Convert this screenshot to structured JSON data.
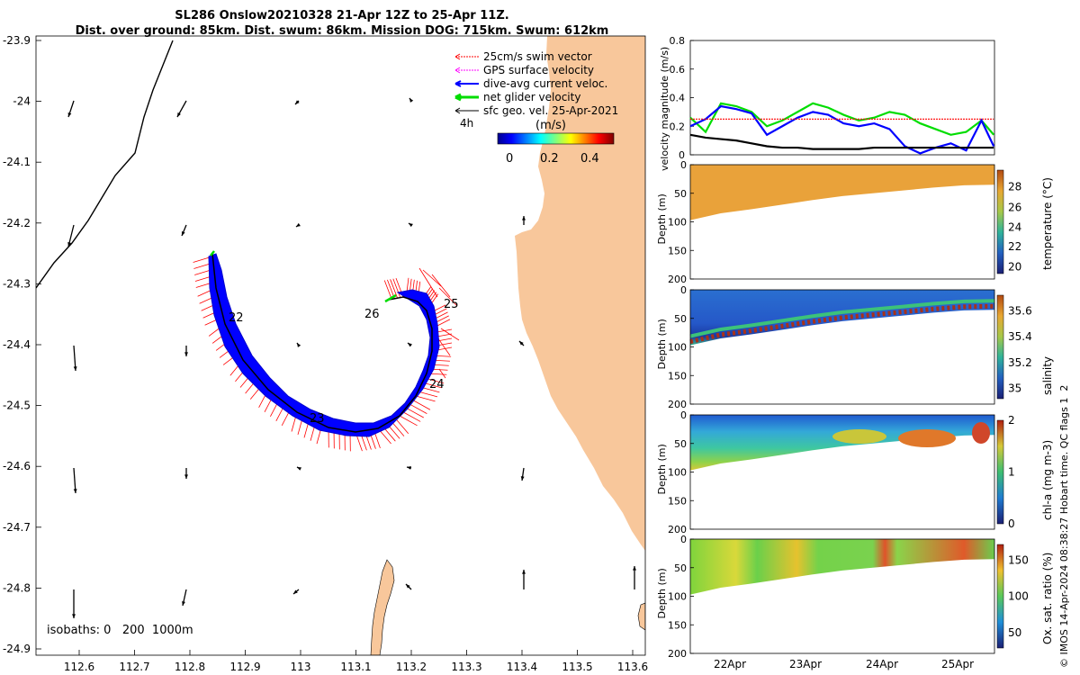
{
  "header": {
    "title_line1": "SL286 Onslow20210328 21-Apr 12Z to 25-Apr 11Z.",
    "title_line2": "Dist. over ground: 85km. Dist. swum: 86km. Mission DOG: 715km. Swum: 612km"
  },
  "map": {
    "lon_ticks": [
      "112.6",
      "112.7",
      "112.8",
      "112.9",
      "113",
      "113.1",
      "113.2",
      "113.3",
      "113.4",
      "113.5",
      "113.6"
    ],
    "lat_ticks": [
      "-23.9",
      "-24",
      "-24.1",
      "-24.2",
      "-24.3",
      "-24.4",
      "-24.5",
      "-24.6",
      "-24.7",
      "-24.8",
      "-24.9"
    ],
    "legend": [
      {
        "label": "25cm/s swim vector",
        "color": "#ff0000"
      },
      {
        "label": "GPS surface velocity",
        "color": "#ff00ff"
      },
      {
        "label": "dive-avg current veloc.",
        "color": "#0000ff"
      },
      {
        "label": "net glider velocity",
        "color": "#00dd00"
      },
      {
        "label": "sfc geo. vel. 25-Apr-2021",
        "color": "#000000"
      }
    ],
    "time_step_label": "4h",
    "colorbar_unit": "(m/s)",
    "colorbar_ticks": [
      "0",
      "0.2",
      "0.4"
    ],
    "day_labels": [
      "22",
      "26",
      "25",
      "24",
      "23"
    ],
    "isobath_label": "isobaths: 0   200  1000m",
    "colors": {
      "land": "#f8c79b",
      "track": "#0000ff",
      "swim": "#ff0000"
    }
  },
  "chart_data": [
    {
      "type": "line",
      "ylabel": "velocity magnitude (m/s)",
      "ylim": [
        0,
        0.8
      ],
      "yticks": [
        "0",
        "0.2",
        "0.4",
        "0.6",
        "0.8"
      ],
      "x_days": [
        21.5,
        21.7,
        21.9,
        22.1,
        22.3,
        22.5,
        22.7,
        22.9,
        23.1,
        23.3,
        23.5,
        23.7,
        23.9,
        24.1,
        24.3,
        24.5,
        24.7,
        24.9,
        25.1,
        25.3,
        25.46
      ],
      "series": [
        {
          "name": "net glider velocity",
          "color": "#00dd00",
          "values": [
            0.26,
            0.16,
            0.36,
            0.34,
            0.3,
            0.2,
            0.24,
            0.3,
            0.36,
            0.33,
            0.28,
            0.24,
            0.26,
            0.3,
            0.28,
            0.22,
            0.18,
            0.14,
            0.16,
            0.24,
            0.14
          ]
        },
        {
          "name": "dive-avg current veloc.",
          "color": "#0000ff",
          "values": [
            0.2,
            0.25,
            0.34,
            0.32,
            0.29,
            0.14,
            0.2,
            0.26,
            0.3,
            0.28,
            0.22,
            0.2,
            0.22,
            0.18,
            0.06,
            0.01,
            0.05,
            0.08,
            0.03,
            0.24,
            0.06
          ]
        },
        {
          "name": "sfc geo. vel.",
          "color": "#000000",
          "values": [
            0.14,
            0.12,
            0.11,
            0.1,
            0.08,
            0.06,
            0.05,
            0.05,
            0.04,
            0.04,
            0.04,
            0.04,
            0.05,
            0.05,
            0.05,
            0.05,
            0.05,
            0.05,
            0.05,
            0.05,
            0.05
          ]
        },
        {
          "name": "25cm/s swim vector",
          "color": "#ff0000",
          "values": [
            0.25,
            0.25,
            0.25,
            0.25,
            0.25,
            0.25,
            0.25,
            0.25,
            0.25,
            0.25,
            0.25,
            0.25,
            0.25,
            0.25,
            0.25,
            0.25,
            0.25,
            0.25,
            0.25,
            0.25,
            0.25
          ]
        }
      ]
    },
    {
      "type": "heatmap",
      "variable": "temperature (°C)",
      "ylabel": "Depth (m)",
      "depth_range": [
        0,
        200
      ],
      "depth_ticks": [
        "0",
        "50",
        "100",
        "150",
        "200"
      ],
      "colorbar_ticks": [
        "20",
        "22",
        "24",
        "26",
        "28"
      ],
      "bottom_depth_m": [
        97,
        85,
        78,
        70,
        62,
        55,
        50,
        45,
        40,
        36,
        35
      ]
    },
    {
      "type": "heatmap",
      "variable": "salinity",
      "ylabel": "Depth (m)",
      "depth_range": [
        0,
        200
      ],
      "depth_ticks": [
        "0",
        "50",
        "100",
        "150",
        "200"
      ],
      "colorbar_ticks": [
        "35",
        "35.2",
        "35.4",
        "35.6"
      ],
      "bottom_depth_m": [
        97,
        85,
        78,
        70,
        62,
        55,
        50,
        45,
        40,
        36,
        35
      ]
    },
    {
      "type": "heatmap",
      "variable": "chl-a (mg m-3)",
      "ylabel": "Depth (m)",
      "depth_range": [
        0,
        200
      ],
      "depth_ticks": [
        "0",
        "50",
        "100",
        "150",
        "200"
      ],
      "colorbar_ticks": [
        "0",
        "1",
        "2"
      ],
      "bottom_depth_m": [
        97,
        85,
        78,
        70,
        62,
        55,
        50,
        45,
        40,
        36,
        35
      ]
    },
    {
      "type": "heatmap",
      "variable": "Ox. sat. ratio (%)",
      "ylabel": "Depth (m)",
      "depth_range": [
        0,
        200
      ],
      "depth_ticks": [
        "0",
        "50",
        "100",
        "150",
        "200"
      ],
      "colorbar_ticks": [
        "50",
        "100",
        "150"
      ],
      "bottom_depth_m": [
        97,
        85,
        78,
        70,
        62,
        55,
        50,
        45,
        40,
        36,
        35
      ]
    }
  ],
  "time_axis": {
    "labels": [
      "22Apr",
      "23Apr",
      "24Apr",
      "25Apr"
    ]
  },
  "footer_vertical": "© IMOS 14-Apr-2024 08:38:27 Hobart time. QC flags 1  2"
}
